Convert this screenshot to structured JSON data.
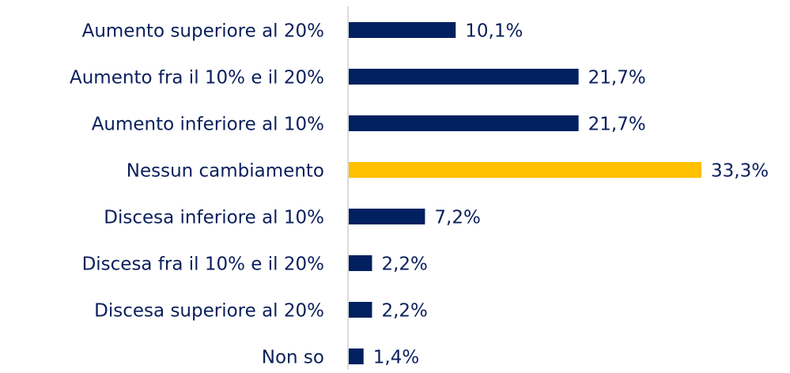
{
  "chart_data": {
    "type": "bar",
    "orientation": "horizontal",
    "categories": [
      "Aumento superiore al 20%",
      "Aumento fra il 10% e il 20%",
      "Aumento inferiore al 10%",
      "Nessun cambiamento",
      "Discesa inferiore al 10%",
      "Discesa fra il 10% e il 20%",
      "Discesa superiore al 20%",
      "Non so"
    ],
    "values": [
      10.1,
      21.7,
      21.7,
      33.3,
      7.2,
      2.2,
      2.2,
      1.4
    ],
    "value_labels": [
      "10,1%",
      "21,7%",
      "21,7%",
      "33,3%",
      "7,2%",
      "2,2%",
      "2,2%",
      "1,4%"
    ],
    "colors": [
      "#002060",
      "#002060",
      "#002060",
      "#ffc000",
      "#002060",
      "#002060",
      "#002060",
      "#002060"
    ]
  }
}
